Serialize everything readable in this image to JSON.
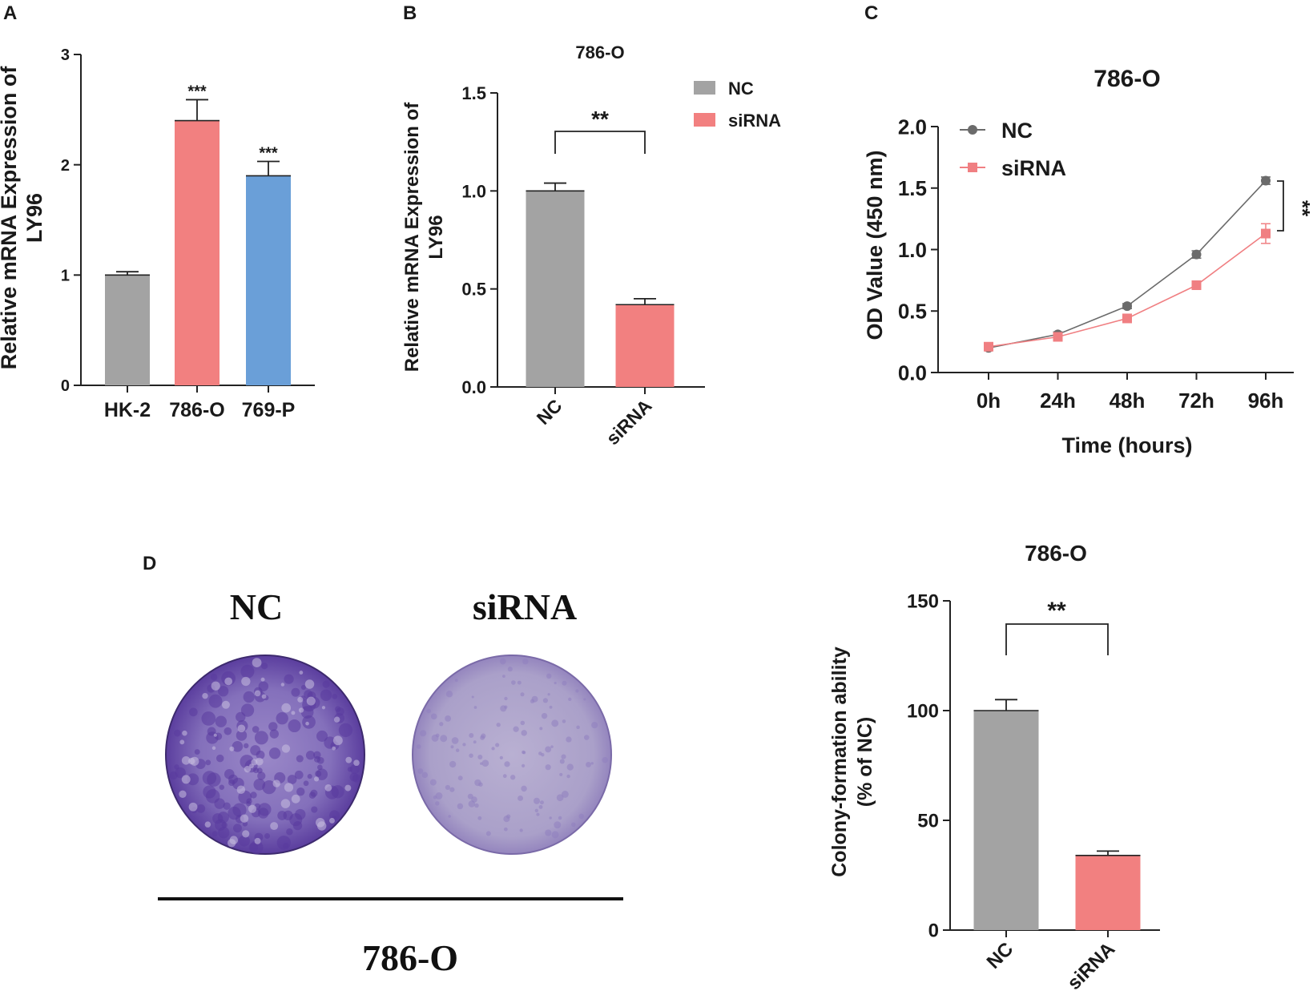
{
  "colors": {
    "gray": "#a3a3a3",
    "red": "#f28080",
    "blue": "#6a9fd8",
    "ncLine": "#6b6b6b",
    "sirnaLine": "#f07f82",
    "dish_dark": "#5b3f9e",
    "dish_light": "#a79ac8",
    "axis": "#222222"
  },
  "chart_data": [
    {
      "panel": "A",
      "type": "bar",
      "title": "",
      "categories": [
        "HK-2",
        "786-O",
        "769-P"
      ],
      "values": [
        1.0,
        2.4,
        1.9
      ],
      "errors": [
        0.03,
        0.19,
        0.13
      ],
      "annotations": [
        "",
        "***",
        "***"
      ],
      "ylabel_line1": "Relative mRNA Expression of",
      "ylabel_line2": "LY96",
      "yticks": [
        "0",
        "1",
        "2",
        "3"
      ],
      "ylim": [
        0,
        3
      ]
    },
    {
      "panel": "B",
      "type": "bar",
      "title": "786-O",
      "categories": [
        "NC",
        "siRNA"
      ],
      "values": [
        1.0,
        0.42
      ],
      "errors": [
        0.04,
        0.03
      ],
      "significance": "**",
      "legend": [
        "NC",
        "siRNA"
      ],
      "ylabel_line1": "Relative mRNA Expression of",
      "ylabel_line2": "LY96",
      "yticks": [
        "0.0",
        "0.5",
        "1.0",
        "1.5"
      ],
      "ylim": [
        0,
        1.5
      ]
    },
    {
      "panel": "C",
      "type": "line",
      "title": "786-O",
      "x": [
        "0h",
        "24h",
        "48h",
        "72h",
        "96h"
      ],
      "series": [
        {
          "name": "NC",
          "values": [
            0.2,
            0.31,
            0.54,
            0.96,
            1.56
          ],
          "errors": [
            0.02,
            0.02,
            0.02,
            0.03,
            0.03
          ]
        },
        {
          "name": "siRNA",
          "values": [
            0.21,
            0.29,
            0.44,
            0.71,
            1.13
          ],
          "errors": [
            0.02,
            0.02,
            0.02,
            0.03,
            0.08
          ]
        }
      ],
      "significance": "**",
      "xlabel": "Time (hours)",
      "ylabel": "OD Value (450 nm)",
      "yticks": [
        "0.0",
        "0.5",
        "1.0",
        "1.5",
        "2.0"
      ],
      "ylim": [
        0,
        2.0
      ]
    },
    {
      "panel": "D",
      "type": "bar",
      "title": "786-O",
      "categories": [
        "NC",
        "siRNA"
      ],
      "values": [
        100,
        34
      ],
      "errors": [
        5,
        2
      ],
      "significance": "**",
      "ylabel_line1": "Colony-formation ability",
      "ylabel_line2": "(% of NC)",
      "yticks": [
        "0",
        "50",
        "100",
        "150"
      ],
      "ylim": [
        0,
        150
      ]
    }
  ],
  "panel_labels": [
    "A",
    "B",
    "C",
    "D"
  ],
  "colony": {
    "left_label": "NC",
    "right_label": "siRNA",
    "cell_line": "786-O"
  }
}
